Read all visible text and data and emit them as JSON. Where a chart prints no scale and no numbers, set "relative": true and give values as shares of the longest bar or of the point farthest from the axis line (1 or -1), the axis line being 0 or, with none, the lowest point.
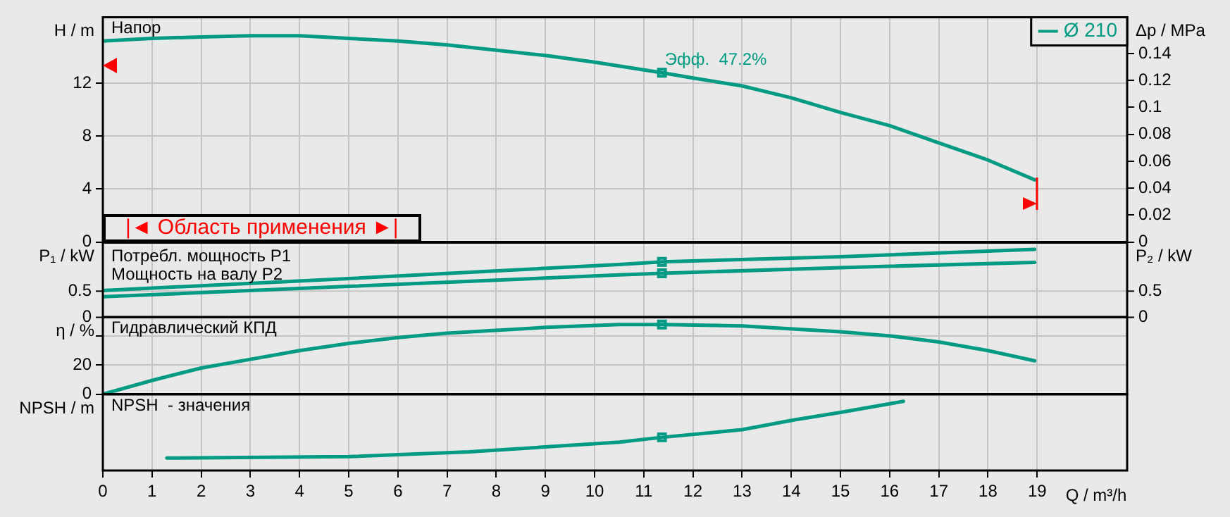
{
  "chart_data": [
    {
      "type": "line",
      "title": "Напор",
      "ylabel": "H / m",
      "y2label": "Δp / MPa",
      "xlim": [
        0,
        20.83
      ],
      "xticks": [
        0,
        1,
        2,
        3,
        4,
        5,
        6,
        7,
        8,
        9,
        10,
        11,
        12,
        13,
        14,
        15,
        16,
        17,
        18,
        19
      ],
      "ylim": [
        0,
        17
      ],
      "yticks": [
        0,
        4,
        8,
        12
      ],
      "y2lim": [
        0,
        0.167
      ],
      "y2ticks": [
        0,
        0.02,
        0.04,
        0.06,
        0.08,
        0.1,
        0.12,
        0.14
      ],
      "grid": true,
      "legend": "top right",
      "tick_labels": "y",
      "series": [
        {
          "name": "Ø 210",
          "color": "#009b82",
          "x": [
            0,
            1,
            2,
            3,
            4,
            5,
            6,
            7,
            8,
            9,
            10,
            11.37,
            12,
            13,
            14,
            15,
            16,
            17,
            18,
            18.95
          ],
          "values": [
            15.2,
            15.4,
            15.5,
            15.6,
            15.6,
            15.4,
            15.2,
            14.9,
            14.5,
            14.1,
            13.6,
            12.8,
            12.4,
            11.8,
            10.9,
            9.8,
            8.8,
            7.5,
            6.2,
            4.7
          ]
        },
        {
          "type": "scatter",
          "marker": "square",
          "color": "#009b82",
          "x": [
            11.37
          ],
          "values": [
            12.8
          ]
        }
      ],
      "annotations": [
        {
          "text": "Эфф.  47.2%",
          "x": 11.37,
          "y": 12.8
        },
        "|◄ Область применения ►|"
      ]
    },
    {
      "type": "line",
      "ylabel": "P₁ / kW",
      "y2label": "P₂ / kW",
      "xlim": [
        0,
        20.83
      ],
      "xticks": [
        0,
        1,
        2,
        3,
        4,
        5,
        6,
        7,
        8,
        9,
        10,
        11,
        12,
        13,
        14,
        15,
        16,
        17,
        18,
        19
      ],
      "ylim": [
        0,
        1.43
      ],
      "yticks": [
        0,
        0.5
      ],
      "y2lim": [
        0,
        1.43
      ],
      "y2ticks": [
        0,
        0.5
      ],
      "grid": true,
      "tick_labels": "y",
      "series": [
        {
          "name": "Потребл. мощность P1",
          "color": "#009b82",
          "x": [
            0,
            5,
            10.5,
            11.37,
            15,
            18.95
          ],
          "values": [
            0.51,
            0.74,
            1.01,
            1.06,
            1.16,
            1.3
          ]
        },
        {
          "name": "Мощность на валу P2",
          "color": "#009b82",
          "x": [
            0,
            5,
            10.5,
            11.37,
            15,
            18.95
          ],
          "values": [
            0.39,
            0.59,
            0.81,
            0.84,
            0.95,
            1.05
          ]
        },
        {
          "type": "scatter",
          "marker": "square",
          "color": "#009b82",
          "x": [
            11.37,
            11.37
          ],
          "values": [
            1.06,
            0.84
          ]
        }
      ]
    },
    {
      "type": "line",
      "title": "Гидравлический КПД",
      "ylabel": "η / %",
      "xlim": [
        0,
        20.83
      ],
      "xticks": [
        0,
        1,
        2,
        3,
        4,
        5,
        6,
        7,
        8,
        9,
        10,
        11,
        12,
        13,
        14,
        15,
        16,
        17,
        18,
        19
      ],
      "ylim": [
        0,
        53
      ],
      "yticks": [
        0,
        20,
        {
          "value": 40,
          "label": null
        }
      ],
      "grid": true,
      "tick_labels": "y",
      "series": [
        {
          "color": "#009b82",
          "x": [
            0,
            1.06,
            2,
            3,
            4,
            5,
            6,
            7,
            9,
            10.5,
            11.37,
            13,
            15,
            16.05,
            17,
            18,
            18.95
          ],
          "values": [
            0,
            10,
            18,
            24,
            30,
            35,
            39,
            42,
            46,
            48,
            48,
            47,
            43,
            40,
            36,
            30,
            23
          ]
        },
        {
          "type": "scatter",
          "marker": "square",
          "color": "#009b82",
          "x": [
            11.37
          ],
          "values": [
            48
          ]
        }
      ]
    },
    {
      "type": "line",
      "title": "NPSH  - значения",
      "ylabel": "NPSH / m",
      "xlabel": "Q / m³/h",
      "relative": true,
      "xlim": [
        0,
        20.83
      ],
      "xticks": [
        0,
        1,
        2,
        3,
        4,
        5,
        6,
        7,
        8,
        9,
        10,
        11,
        12,
        13,
        14,
        15,
        16,
        17,
        18,
        19
      ],
      "grid": "x",
      "tick_labels": "x",
      "series": [
        {
          "color": "#009b82",
          "x": [
            1.3,
            5,
            7.45,
            10.5,
            11.37,
            13,
            14.05,
            15,
            16.28
          ],
          "values": [
            0.18,
            0.2,
            0.27,
            0.41,
            0.48,
            0.59,
            0.73,
            0.84,
            1
          ]
        },
        {
          "type": "scatter",
          "marker": "square",
          "color": "#009b82",
          "x": [
            11.37
          ],
          "values": [
            0.48
          ]
        }
      ]
    }
  ]
}
